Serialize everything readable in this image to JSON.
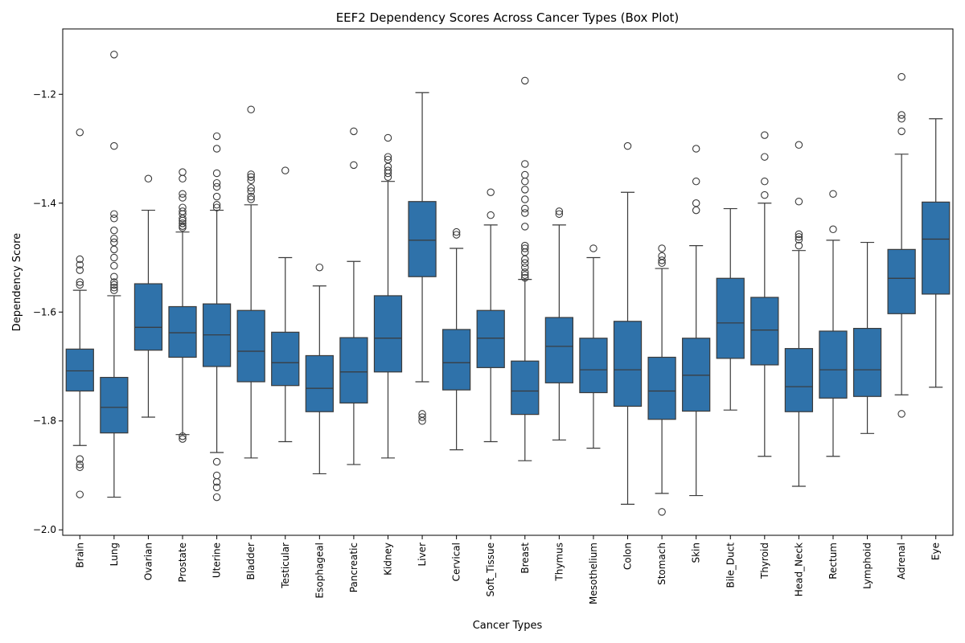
{
  "chart_data": {
    "type": "box",
    "title": "EEF2 Dependency Scores Across Cancer Types (Box Plot)",
    "xlabel": "Cancer Types",
    "ylabel": "Dependency Score",
    "ylim": [
      -2.01,
      -1.08
    ],
    "yticks": [
      -2.0,
      -1.8,
      -1.6,
      -1.4,
      -1.2
    ],
    "ytick_labels": [
      "−2.0",
      "−1.8",
      "−1.6",
      "−1.4",
      "−1.2"
    ],
    "grid": false,
    "box_color": "#2f72aa",
    "line_color": "#3a3a3a",
    "categories": [
      "Brain",
      "Lung",
      "Ovarian",
      "Prostate",
      "Uterine",
      "Bladder",
      "Testicular",
      "Esophageal",
      "Pancreatic",
      "Kidney",
      "Liver",
      "Cervical",
      "Soft_Tissue",
      "Breast",
      "Thymus",
      "Mesothelium",
      "Colon",
      "Stomach",
      "Skin",
      "Bile_Duct",
      "Thyroid",
      "Head_Neck",
      "Rectum",
      "Lymphoid",
      "Adrenal",
      "Eye"
    ],
    "boxes": [
      {
        "whislo": -1.845,
        "q1": -1.745,
        "med": -1.708,
        "q3": -1.668,
        "whishi": -1.56,
        "fliers": [
          -1.27,
          -1.503,
          -1.513,
          -1.523,
          -1.545,
          -1.55,
          -1.87,
          -1.88,
          -1.885,
          -1.935
        ]
      },
      {
        "whislo": -1.94,
        "q1": -1.822,
        "med": -1.775,
        "q3": -1.72,
        "whishi": -1.57,
        "fliers": [
          -1.127,
          -1.295,
          -1.42,
          -1.428,
          -1.45,
          -1.465,
          -1.472,
          -1.485,
          -1.5,
          -1.515,
          -1.535,
          -1.545,
          -1.55,
          -1.555,
          -1.56
        ]
      },
      {
        "whislo": -1.793,
        "q1": -1.67,
        "med": -1.628,
        "q3": -1.548,
        "whishi": -1.413,
        "fliers": [
          -1.355
        ]
      },
      {
        "whislo": -1.825,
        "q1": -1.683,
        "med": -1.638,
        "q3": -1.59,
        "whishi": -1.453,
        "fliers": [
          -1.343,
          -1.355,
          -1.383,
          -1.39,
          -1.408,
          -1.415,
          -1.42,
          -1.428,
          -1.432,
          -1.437,
          -1.442,
          -1.445,
          -1.828,
          -1.833
        ]
      },
      {
        "whislo": -1.858,
        "q1": -1.7,
        "med": -1.642,
        "q3": -1.585,
        "whishi": -1.413,
        "fliers": [
          -1.277,
          -1.3,
          -1.345,
          -1.363,
          -1.37,
          -1.388,
          -1.403,
          -1.408,
          -1.875,
          -1.9,
          -1.912,
          -1.922,
          -1.94
        ]
      },
      {
        "whislo": -1.868,
        "q1": -1.728,
        "med": -1.672,
        "q3": -1.597,
        "whishi": -1.403,
        "fliers": [
          -1.228,
          -1.347,
          -1.352,
          -1.358,
          -1.372,
          -1.378,
          -1.388,
          -1.393
        ]
      },
      {
        "whislo": -1.838,
        "q1": -1.735,
        "med": -1.693,
        "q3": -1.637,
        "whishi": -1.5,
        "fliers": [
          -1.34
        ]
      },
      {
        "whislo": -1.897,
        "q1": -1.783,
        "med": -1.74,
        "q3": -1.68,
        "whishi": -1.552,
        "fliers": [
          -1.518
        ]
      },
      {
        "whislo": -1.88,
        "q1": -1.767,
        "med": -1.71,
        "q3": -1.647,
        "whishi": -1.507,
        "fliers": [
          -1.268,
          -1.33
        ]
      },
      {
        "whislo": -1.868,
        "q1": -1.71,
        "med": -1.648,
        "q3": -1.57,
        "whishi": -1.36,
        "fliers": [
          -1.28,
          -1.315,
          -1.32,
          -1.333,
          -1.34,
          -1.345,
          -1.352
        ]
      },
      {
        "whislo": -1.728,
        "q1": -1.535,
        "med": -1.468,
        "q3": -1.397,
        "whishi": -1.197,
        "fliers": [
          -1.787,
          -1.793,
          -1.8
        ]
      },
      {
        "whislo": -1.853,
        "q1": -1.743,
        "med": -1.693,
        "q3": -1.632,
        "whishi": -1.483,
        "fliers": [
          -1.453,
          -1.458
        ]
      },
      {
        "whislo": -1.838,
        "q1": -1.702,
        "med": -1.648,
        "q3": -1.597,
        "whishi": -1.44,
        "fliers": [
          -1.38,
          -1.422
        ]
      },
      {
        "whislo": -1.873,
        "q1": -1.788,
        "med": -1.745,
        "q3": -1.69,
        "whishi": -1.54,
        "fliers": [
          -1.175,
          -1.328,
          -1.348,
          -1.36,
          -1.375,
          -1.393,
          -1.41,
          -1.418,
          -1.443,
          -1.478,
          -1.483,
          -1.49,
          -1.503,
          -1.51,
          -1.518,
          -1.527,
          -1.532,
          -1.537
        ]
      },
      {
        "whislo": -1.835,
        "q1": -1.73,
        "med": -1.663,
        "q3": -1.61,
        "whishi": -1.44,
        "fliers": [
          -1.415,
          -1.42
        ]
      },
      {
        "whislo": -1.85,
        "q1": -1.748,
        "med": -1.706,
        "q3": -1.648,
        "whishi": -1.5,
        "fliers": [
          -1.483
        ]
      },
      {
        "whislo": -1.953,
        "q1": -1.773,
        "med": -1.706,
        "q3": -1.617,
        "whishi": -1.38,
        "fliers": [
          -1.295
        ]
      },
      {
        "whislo": -1.933,
        "q1": -1.797,
        "med": -1.745,
        "q3": -1.683,
        "whishi": -1.52,
        "fliers": [
          -1.483,
          -1.497,
          -1.505,
          -1.51,
          -1.967
        ]
      },
      {
        "whislo": -1.937,
        "q1": -1.782,
        "med": -1.716,
        "q3": -1.648,
        "whishi": -1.478,
        "fliers": [
          -1.3,
          -1.36,
          -1.4,
          -1.413
        ]
      },
      {
        "whislo": -1.78,
        "q1": -1.685,
        "med": -1.62,
        "q3": -1.538,
        "whishi": -1.41,
        "fliers": []
      },
      {
        "whislo": -1.865,
        "q1": -1.697,
        "med": -1.633,
        "q3": -1.573,
        "whishi": -1.4,
        "fliers": [
          -1.275,
          -1.315,
          -1.36,
          -1.385
        ]
      },
      {
        "whislo": -1.92,
        "q1": -1.783,
        "med": -1.737,
        "q3": -1.667,
        "whishi": -1.487,
        "fliers": [
          -1.293,
          -1.397,
          -1.457,
          -1.462,
          -1.467,
          -1.478
        ]
      },
      {
        "whislo": -1.865,
        "q1": -1.758,
        "med": -1.706,
        "q3": -1.635,
        "whishi": -1.468,
        "fliers": [
          -1.383,
          -1.448
        ]
      },
      {
        "whislo": -1.823,
        "q1": -1.755,
        "med": -1.706,
        "q3": -1.63,
        "whishi": -1.472,
        "fliers": []
      },
      {
        "whislo": -1.752,
        "q1": -1.603,
        "med": -1.538,
        "q3": -1.485,
        "whishi": -1.31,
        "fliers": [
          -1.168,
          -1.238,
          -1.245,
          -1.268,
          -1.787
        ]
      },
      {
        "whislo": -1.738,
        "q1": -1.567,
        "med": -1.466,
        "q3": -1.398,
        "whishi": -1.245,
        "fliers": []
      }
    ]
  }
}
